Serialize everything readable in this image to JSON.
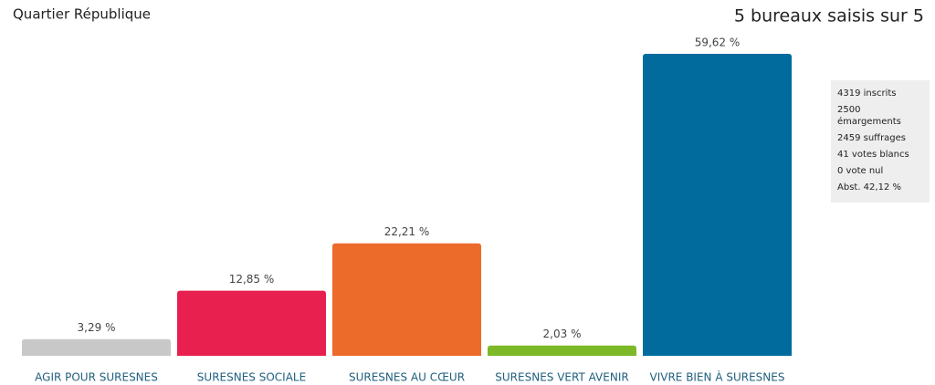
{
  "chart_data": {
    "type": "bar",
    "title": "Quartier République",
    "subtitle": "5 bureaux saisis sur 5",
    "categories": [
      "AGIR POUR SURESNES",
      "SURESNES SOCIALE",
      "SURESNES AU CŒUR",
      "SURESNES VERT AVENIR",
      "VIVRE BIEN À SURESNES"
    ],
    "values": [
      3.29,
      12.85,
      22.21,
      2.03,
      59.62
    ],
    "value_labels": [
      "3,29 %",
      "12,85 %",
      "22,21 %",
      "2,03 %",
      "59,62 %"
    ],
    "colors": [
      "#c8c8c8",
      "#e8204f",
      "#ec6a2a",
      "#7db828",
      "#016b9e"
    ]
  },
  "stats": [
    "4319 inscrits",
    "2500 émargements",
    "2459 suffrages",
    "41 votes blancs",
    "0 vote nul",
    "Abst. 42,12 %"
  ]
}
